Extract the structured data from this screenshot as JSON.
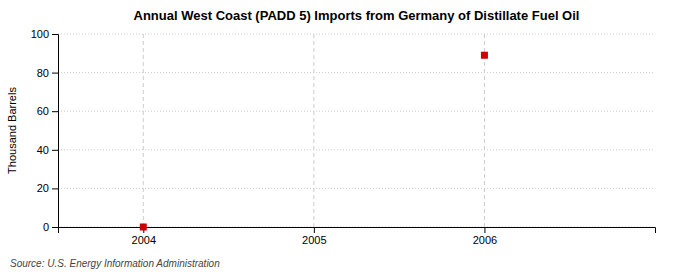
{
  "chart_data": {
    "type": "scatter",
    "title": "Annual West Coast (PADD 5) Imports from Germany of Distillate Fuel Oil",
    "y_label": "Thousand Barrels",
    "source": "Source: U.S. Energy Information Administration",
    "x": [
      2004,
      2006
    ],
    "values": [
      0,
      89
    ],
    "color": "#cc0000",
    "marker": "square",
    "xlim": [
      2003.5,
      2007.0
    ],
    "ylim": [
      0,
      100
    ],
    "xticks": [
      2004,
      2005,
      2006
    ],
    "yticks": [
      0,
      20,
      40,
      60,
      80,
      100
    ],
    "grid": true
  }
}
